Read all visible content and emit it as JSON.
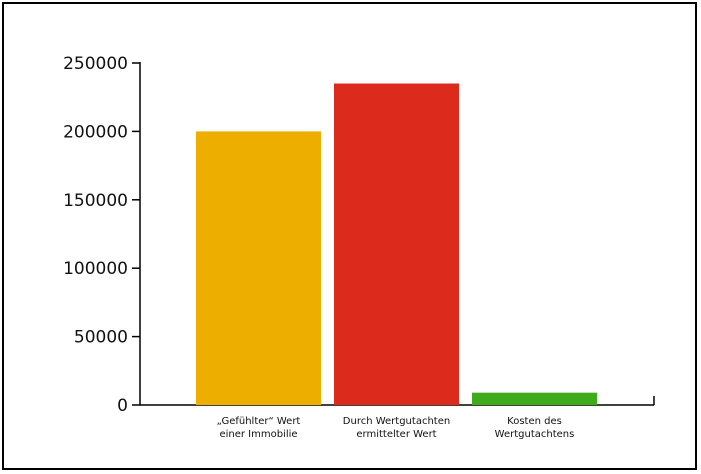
{
  "chart_data": {
    "type": "bar",
    "title": "",
    "xlabel": "",
    "ylabel": "",
    "categories": [
      [
        "„Gefühlter“ Wert",
        "einer Immobilie"
      ],
      [
        "Durch Wertgutachten",
        "ermittelter Wert"
      ],
      [
        "Kosten des",
        "Wertgutachtens"
      ]
    ],
    "values": [
      200000,
      235000,
      9000
    ],
    "colors": [
      "#EDAE00",
      "#DC2A1C",
      "#3FAA1A"
    ],
    "ylim": [
      0,
      250000
    ],
    "yticks": [
      0,
      50000,
      100000,
      150000,
      200000,
      250000
    ],
    "ytick_labels": [
      "0",
      "50000",
      "100000",
      "150000",
      "200000",
      "250000"
    ],
    "grid": false,
    "legend": "none"
  }
}
